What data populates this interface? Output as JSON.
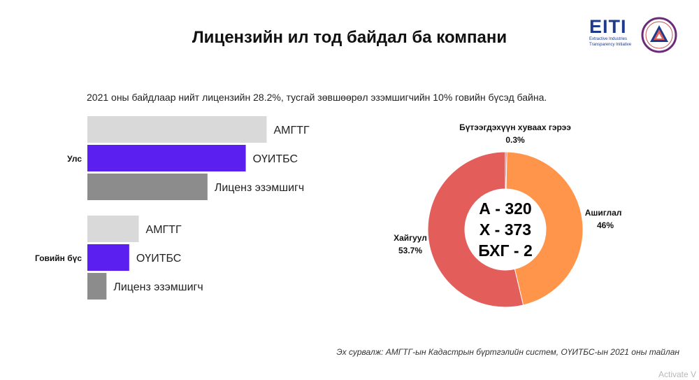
{
  "title": "Лицензийн ил тод байдал ба компани",
  "subtitle": "2021 оны байдлаар нийт лицензийн 28.2%, тусгай зөвшөөрөл эзэмшигчийн 10% говийн бүсэд байна.",
  "logos": {
    "eiti_word": "EITI",
    "eiti_sub_1": "Extractive Industries",
    "eiti_sub_2": "Transparency Initiative"
  },
  "source": "Эх сурвалж: АМГТГ-ын Кадастрын бүртгэлийн систем, ОҮИТБС-ын 2021 оны тайлан",
  "watermark": "Activate V",
  "chart_data": [
    {
      "type": "bar",
      "orientation": "horizontal",
      "groups": [
        {
          "name": "Улс",
          "bars": [
            {
              "label": "АМГТГ",
              "value": 3000,
              "color": "#d9d9d9"
            },
            {
              "label": "ОҮИТБС",
              "value": 2650,
              "color": "#5b1ff0"
            },
            {
              "label": "Лиценз эзэмшигч",
              "value": 2010,
              "color": "#8c8c8c"
            }
          ]
        },
        {
          "name": "Говийн бүс",
          "bars": [
            {
              "label": "АМГТГ",
              "value": 860,
              "color": "#d9d9d9"
            },
            {
              "label": "ОҮИТБС",
              "value": 700,
              "color": "#5b1ff0"
            },
            {
              "label": "Лиценз эзэмшигч",
              "value": 320,
              "color": "#8c8c8c"
            }
          ]
        }
      ],
      "xlim": [
        0,
        4000
      ],
      "xticks": [
        0,
        1000,
        2000,
        3000,
        4000
      ],
      "xtick_labels": [
        "0",
        "1,000",
        "2,000",
        "3,000",
        "4,000"
      ],
      "grid": false,
      "legend": "none"
    },
    {
      "type": "pie",
      "donut": true,
      "slices": [
        {
          "name": "Бүтээгдэхүүн хуваах гэрээ",
          "value": 0.3,
          "label": "0.3%",
          "color": "#c94f4f"
        },
        {
          "name": "Ашиглалт",
          "value": 46,
          "label": "46%",
          "color": "#ff954a"
        },
        {
          "name": "Хайгуул",
          "value": 53.7,
          "label": "53.7%",
          "color": "#e35d5b"
        }
      ],
      "center_lines": [
        "А - 320",
        "Х - 373",
        "БХГ - 2"
      ]
    }
  ]
}
